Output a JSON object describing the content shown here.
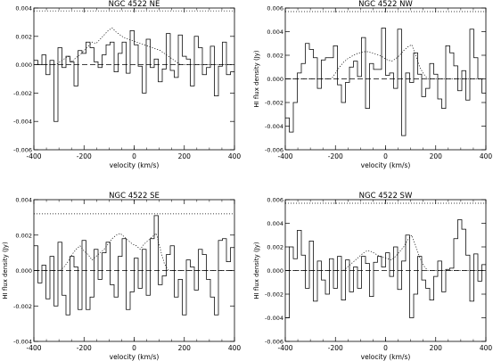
{
  "chart_data": [
    {
      "type": "line",
      "title": "NGC 4522 NE",
      "xlabel": "velocity (km/s)",
      "ylabel": "",
      "xlim": [
        -400,
        400
      ],
      "ylim": [
        -0.006,
        0.004
      ],
      "xticks": [
        "-400",
        "-200",
        "0",
        "200",
        "400"
      ],
      "yticks": [
        "-0.006",
        "-0.004",
        "-0.002",
        "0.000",
        "0.002",
        "0.004"
      ],
      "grid": false,
      "x": [
        -400,
        -384,
        -368,
        -352,
        -336,
        -320,
        -304,
        -288,
        -272,
        -256,
        -240,
        -224,
        -208,
        -192,
        -176,
        -160,
        -144,
        -128,
        -112,
        -96,
        -80,
        -64,
        -48,
        -32,
        -16,
        0,
        16,
        32,
        48,
        64,
        80,
        96,
        112,
        128,
        144,
        160,
        176,
        192,
        208,
        224,
        240,
        256,
        272,
        288,
        304,
        320,
        336,
        352,
        368,
        384
      ],
      "series": [
        {
          "style": "step",
          "values": [
            0.0003,
            0.0,
            0.0007,
            -0.0007,
            0.0003,
            -0.004,
            0.0012,
            -0.0002,
            0.0006,
            0.0002,
            -0.0015,
            0.001,
            0.0008,
            0.0016,
            0.0012,
            0.0002,
            -0.0002,
            0.0007,
            0.0014,
            0.0016,
            -0.0005,
            0.0008,
            0.0016,
            -0.0006,
            0.0024,
            0.0014,
            -0.0001,
            -0.002,
            0.0018,
            -0.0002,
            0.0004,
            -0.0012,
            -0.0003,
            0.0022,
            -0.0004,
            -0.0009,
            0.0021,
            0.0006,
            0.0004,
            -0.0015,
            0.002,
            0.0012,
            -0.0007,
            -0.0002,
            0.0013,
            -0.0022,
            -0.0001,
            0.0016,
            -0.0007,
            -0.0005
          ]
        },
        {
          "style": "dotted",
          "values": [
            0.0,
            0.0,
            0.0,
            0.0,
            0.0,
            0.0,
            0.0002,
            0.0004,
            0.0006,
            0.0002,
            0.0005,
            0.0007,
            0.001,
            0.0013,
            0.0016,
            0.0015,
            0.0018,
            0.0021,
            0.0024,
            0.0026,
            0.0023,
            0.0021,
            0.0019,
            0.0018,
            0.0017,
            0.0016,
            0.0015,
            0.0014,
            0.0013,
            0.0012,
            0.0011,
            0.001,
            0.0008,
            0.0006,
            0.0004,
            0.0002,
            0.0,
            0.0,
            0.0,
            0.0,
            0.0,
            0.0,
            0.0,
            0.0,
            0.0,
            0.0,
            0.0,
            0.0,
            0.0,
            0.0
          ]
        }
      ],
      "zero_line": 0.0,
      "reference_level": 0.0038
    },
    {
      "type": "line",
      "title": "NGC 4522 NW",
      "xlabel": "velocity (km/s)",
      "ylabel": "HI flux density (Jy)",
      "xlim": [
        -400,
        400
      ],
      "ylim": [
        -0.006,
        0.006
      ],
      "xticks": [
        "-400",
        "-200",
        "0",
        "200",
        "400"
      ],
      "yticks": [
        "-0.006",
        "-0.004",
        "-0.002",
        "0.000",
        "0.002",
        "0.004",
        "0.006"
      ],
      "grid": false,
      "x": [
        -400,
        -384,
        -368,
        -352,
        -336,
        -320,
        -304,
        -288,
        -272,
        -256,
        -240,
        -224,
        -208,
        -192,
        -176,
        -160,
        -144,
        -128,
        -112,
        -96,
        -80,
        -64,
        -48,
        -32,
        -16,
        0,
        16,
        32,
        48,
        64,
        80,
        96,
        112,
        128,
        144,
        160,
        176,
        192,
        208,
        224,
        240,
        256,
        272,
        288,
        304,
        320,
        336,
        352,
        368,
        384
      ],
      "series": [
        {
          "style": "step",
          "values": [
            -0.0033,
            -0.0045,
            -0.002,
            0.0005,
            0.0013,
            0.003,
            0.0025,
            0.0018,
            -0.0008,
            0.0016,
            0.0018,
            0.0018,
            0.0028,
            -0.0005,
            -0.002,
            -0.0003,
            0.001,
            0.0015,
            0.0002,
            0.0035,
            -0.0025,
            0.0013,
            0.0008,
            0.0008,
            0.0043,
            0.0003,
            0.0005,
            -0.0008,
            0.0042,
            -0.0048,
            0.0005,
            -0.0003,
            0.0022,
            0.0004,
            -0.0015,
            -0.0008,
            0.0013,
            0.0004,
            -0.0017,
            -0.0025,
            0.0028,
            0.0022,
            0.0011,
            -0.001,
            0.0007,
            -0.0018,
            0.0042,
            0.0018,
            0.0,
            -0.0012
          ]
        },
        {
          "style": "dotted",
          "values": [
            0.0,
            0.0,
            0.0,
            0.0,
            0.0,
            0.0,
            0.0,
            0.0,
            0.0,
            0.0,
            0.0,
            0.0,
            0.0005,
            0.001,
            0.0014,
            0.0017,
            0.0019,
            0.0021,
            0.0022,
            0.0023,
            0.0023,
            0.0022,
            0.0021,
            0.002,
            0.0018,
            0.0016,
            0.0015,
            0.0017,
            0.002,
            0.0024,
            0.0027,
            0.0029,
            0.002,
            0.001,
            0.0004,
            0.0,
            0.0,
            0.0,
            0.0,
            0.0,
            0.0,
            0.0,
            0.0,
            0.0,
            0.0,
            0.0,
            0.0,
            0.0,
            0.0,
            0.0
          ]
        }
      ],
      "zero_line": 0.0,
      "reference_level": 0.0057
    },
    {
      "type": "line",
      "title": "NGC 4522 SE",
      "xlabel": "velocity (km/s)",
      "ylabel": "HI flux density (Jy)",
      "xlim": [
        -400,
        400
      ],
      "ylim": [
        -0.004,
        0.004
      ],
      "xticks": [
        "-400",
        "-200",
        "0",
        "200",
        "400"
      ],
      "yticks": [
        "-0.004",
        "-0.002",
        "0.000",
        "0.002",
        "0.004"
      ],
      "grid": false,
      "x": [
        -400,
        -384,
        -368,
        -352,
        -336,
        -320,
        -304,
        -288,
        -272,
        -256,
        -240,
        -224,
        -208,
        -192,
        -176,
        -160,
        -144,
        -128,
        -112,
        -96,
        -80,
        -64,
        -48,
        -32,
        -16,
        0,
        16,
        32,
        48,
        64,
        80,
        96,
        112,
        128,
        144,
        160,
        176,
        192,
        208,
        224,
        240,
        256,
        272,
        288,
        304,
        320,
        336,
        352,
        368,
        384
      ],
      "series": [
        {
          "style": "step",
          "values": [
            0.0014,
            -0.0007,
            0.0003,
            -0.0016,
            0.0008,
            -0.002,
            0.0016,
            -0.0014,
            -0.0025,
            0.0008,
            0.0002,
            -0.0022,
            0.0017,
            -0.0022,
            -0.0015,
            0.0012,
            -0.0005,
            0.001,
            0.0016,
            -0.0008,
            -0.0015,
            0.0008,
            0.0018,
            -0.0022,
            -0.0012,
            0.0007,
            -0.001,
            0.0012,
            -0.0014,
            0.0018,
            0.0031,
            -0.0008,
            -0.0003,
            0.0009,
            0.0014,
            -0.0015,
            -0.0005,
            -0.0025,
            0.0006,
            0.0002,
            -0.0011,
            0.0012,
            0.0009,
            -0.0005,
            -0.0015,
            -0.0025,
            0.0017,
            0.0018,
            0.0005,
            0.0013
          ]
        },
        {
          "style": "dotted",
          "values": [
            0.0,
            0.0,
            0.0,
            0.0,
            0.0,
            0.0,
            0.0,
            0.0002,
            0.0005,
            0.0009,
            0.0012,
            0.0014,
            0.0011,
            0.0009,
            0.0006,
            0.0008,
            0.001,
            0.0012,
            0.0015,
            0.0018,
            0.002,
            0.0021,
            0.0019,
            0.0017,
            0.0015,
            0.0014,
            0.0012,
            0.0015,
            0.0017,
            0.0019,
            0.0021,
            0.0012,
            0.0004,
            0.0,
            0.0,
            0.0,
            0.0,
            0.0,
            0.0,
            0.0,
            0.0,
            0.0,
            0.0,
            0.0,
            0.0,
            0.0,
            0.0,
            0.0,
            0.0,
            0.0
          ]
        }
      ],
      "zero_line": 0.0,
      "reference_level": 0.0032
    },
    {
      "type": "line",
      "title": "NGC 4522 SW",
      "xlabel": "velocity (km/s)",
      "ylabel": "HI flux density (Jy)",
      "xlim": [
        -400,
        400
      ],
      "ylim": [
        -0.006,
        0.006
      ],
      "xticks": [
        "-400",
        "-200",
        "0",
        "200",
        "400"
      ],
      "yticks": [
        "-0.006",
        "-0.004",
        "-0.002",
        "0.000",
        "0.002",
        "0.004",
        "0.006"
      ],
      "grid": false,
      "x": [
        -400,
        -384,
        -368,
        -352,
        -336,
        -320,
        -304,
        -288,
        -272,
        -256,
        -240,
        -224,
        -208,
        -192,
        -176,
        -160,
        -144,
        -128,
        -112,
        -96,
        -80,
        -64,
        -48,
        -32,
        -16,
        0,
        16,
        32,
        48,
        64,
        80,
        96,
        112,
        128,
        144,
        160,
        176,
        192,
        208,
        224,
        240,
        256,
        272,
        288,
        304,
        320,
        336,
        352,
        368,
        384
      ],
      "series": [
        {
          "style": "step",
          "values": [
            -0.004,
            0.002,
            0.001,
            0.0034,
            0.0013,
            -0.0015,
            0.0025,
            -0.0026,
            0.0008,
            -0.0008,
            -0.002,
            0.001,
            -0.0015,
            0.0012,
            -0.0025,
            0.0009,
            -0.0018,
            0.0003,
            -0.0015,
            0.0012,
            0.0006,
            -0.0022,
            0.0007,
            0.0012,
            0.0003,
            0.0015,
            -0.0005,
            0.002,
            -0.0016,
            0.0008,
            0.003,
            -0.004,
            -0.002,
            0.0012,
            -0.0008,
            -0.0015,
            -0.0025,
            -0.0005,
            0.0008,
            -0.0018,
            0.0001,
            0.0002,
            0.0027,
            0.0043,
            0.0035,
            0.0013,
            -0.0026,
            0.0014,
            -0.0009,
            0.0005
          ]
        },
        {
          "style": "dotted",
          "values": [
            0.0,
            0.0,
            0.0,
            0.0,
            0.0,
            0.0,
            0.0,
            0.0,
            0.0,
            0.0,
            0.0,
            0.0,
            0.0,
            0.0,
            0.0,
            0.0003,
            0.0006,
            0.0009,
            0.0012,
            0.0015,
            0.0017,
            0.0016,
            0.0014,
            0.0012,
            0.0011,
            0.001,
            0.0009,
            0.0012,
            0.0016,
            0.002,
            0.0026,
            0.003,
            0.0021,
            0.0011,
            0.0004,
            0.0,
            0.0,
            0.0,
            0.0,
            0.0,
            0.0,
            0.0,
            0.0,
            0.0,
            0.0,
            0.0,
            0.0,
            0.0,
            0.0,
            0.0
          ]
        }
      ],
      "zero_line": 0.0,
      "reference_level": 0.0057
    }
  ]
}
